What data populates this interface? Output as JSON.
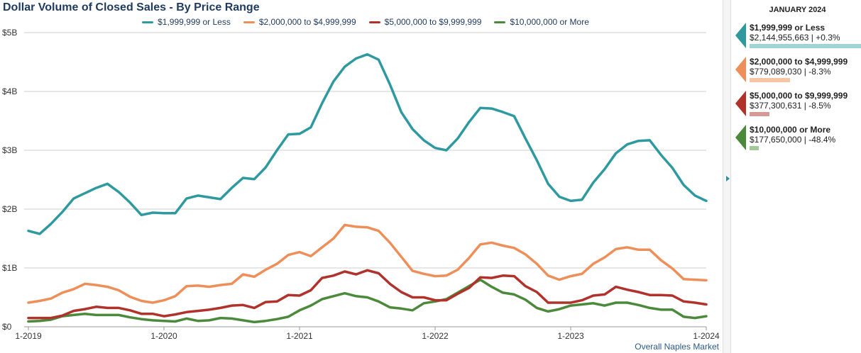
{
  "title": "Dollar Volume of Closed Sales - By Price Range",
  "footer": "Overall Naples Market",
  "panel": {
    "header": "JANUARY 2024",
    "entries": [
      {
        "label": "$1,999,999 or Less",
        "value": "$2,144,955,663 | +0.3%",
        "color": "#2e9aa0",
        "bar_color": "#9fd3d4",
        "share": 1.0
      },
      {
        "label": "$2,000,000 to $4,999,999",
        "value": "$779,089,030 | -8.3%",
        "color": "#ee8f5a",
        "bar_color": "#f6c6a6",
        "share": 0.363
      },
      {
        "label": "$5,000,000 to $9,999,999",
        "value": "$377,300,631 | -8.5%",
        "color": "#b0322b",
        "bar_color": "#d69a96",
        "share": 0.176
      },
      {
        "label": "$10,000,000 or More",
        "value": "$177,650,000 | -48.4%",
        "color": "#4a8a3a",
        "bar_color": "#a3c999",
        "share": 0.083
      }
    ]
  },
  "chart_data": {
    "type": "line",
    "title": "Dollar Volume of Closed Sales - By Price Range",
    "ylim": [
      0,
      5000000000
    ],
    "y_ticks": [
      0,
      1000000000,
      2000000000,
      3000000000,
      4000000000,
      5000000000
    ],
    "y_tick_labels": [
      "$0",
      "$1B",
      "$2B",
      "$3B",
      "$4B",
      "$5B"
    ],
    "x_tick_labels": [
      "1-2019",
      "1-2020",
      "1-2021",
      "1-2022",
      "1-2023",
      "1-2024"
    ],
    "x_tick_index": [
      0,
      12,
      24,
      36,
      48,
      60
    ],
    "grid": true,
    "legend": "top",
    "series": [
      {
        "name": "$1,999,999 or Less",
        "color": "#2e9aa0",
        "values": [
          1.63,
          1.58,
          1.75,
          1.95,
          2.18,
          2.27,
          2.36,
          2.43,
          2.29,
          2.11,
          1.9,
          1.94,
          1.93,
          1.93,
          2.18,
          2.23,
          2.2,
          2.17,
          2.36,
          2.53,
          2.51,
          2.71,
          3.0,
          3.27,
          3.28,
          3.39,
          3.8,
          4.17,
          4.42,
          4.56,
          4.63,
          4.54,
          4.12,
          3.65,
          3.36,
          3.17,
          3.04,
          3.0,
          3.2,
          3.48,
          3.72,
          3.71,
          3.65,
          3.58,
          3.2,
          2.83,
          2.43,
          2.21,
          2.14,
          2.16,
          2.45,
          2.68,
          2.95,
          3.1,
          3.16,
          3.17,
          2.92,
          2.7,
          2.41,
          2.23,
          2.14
        ]
      },
      {
        "name": "$2,000,000 to $4,999,999",
        "color": "#ee8f5a",
        "values": [
          0.41,
          0.44,
          0.48,
          0.58,
          0.64,
          0.73,
          0.71,
          0.68,
          0.62,
          0.51,
          0.44,
          0.41,
          0.45,
          0.52,
          0.69,
          0.7,
          0.68,
          0.71,
          0.73,
          0.89,
          0.85,
          0.97,
          1.07,
          1.22,
          1.27,
          1.2,
          1.35,
          1.5,
          1.73,
          1.7,
          1.69,
          1.63,
          1.43,
          1.19,
          0.95,
          0.9,
          0.86,
          0.87,
          0.97,
          1.17,
          1.4,
          1.43,
          1.38,
          1.34,
          1.23,
          1.07,
          0.87,
          0.8,
          0.86,
          0.9,
          1.07,
          1.18,
          1.32,
          1.35,
          1.31,
          1.31,
          1.13,
          0.99,
          0.81,
          0.8,
          0.79
        ]
      },
      {
        "name": "$5,000,000 to $9,999,999",
        "color": "#b0322b",
        "values": [
          0.15,
          0.15,
          0.15,
          0.19,
          0.27,
          0.3,
          0.34,
          0.32,
          0.32,
          0.28,
          0.22,
          0.22,
          0.18,
          0.21,
          0.25,
          0.27,
          0.29,
          0.32,
          0.36,
          0.37,
          0.32,
          0.42,
          0.43,
          0.54,
          0.53,
          0.62,
          0.83,
          0.87,
          0.94,
          0.89,
          0.96,
          0.91,
          0.73,
          0.59,
          0.5,
          0.5,
          0.45,
          0.45,
          0.56,
          0.66,
          0.84,
          0.83,
          0.87,
          0.86,
          0.69,
          0.59,
          0.41,
          0.41,
          0.41,
          0.45,
          0.53,
          0.55,
          0.68,
          0.63,
          0.59,
          0.54,
          0.54,
          0.53,
          0.43,
          0.41,
          0.38
        ]
      },
      {
        "name": "$10,000,000 or More",
        "color": "#4a8a3a",
        "values": [
          0.09,
          0.1,
          0.12,
          0.18,
          0.2,
          0.22,
          0.2,
          0.2,
          0.2,
          0.16,
          0.13,
          0.11,
          0.1,
          0.09,
          0.14,
          0.1,
          0.11,
          0.15,
          0.14,
          0.11,
          0.08,
          0.1,
          0.13,
          0.17,
          0.28,
          0.36,
          0.47,
          0.52,
          0.57,
          0.52,
          0.5,
          0.43,
          0.33,
          0.31,
          0.28,
          0.4,
          0.43,
          0.47,
          0.58,
          0.69,
          0.8,
          0.68,
          0.58,
          0.55,
          0.46,
          0.32,
          0.26,
          0.3,
          0.36,
          0.38,
          0.4,
          0.36,
          0.41,
          0.41,
          0.37,
          0.32,
          0.29,
          0.29,
          0.17,
          0.15,
          0.18
        ]
      }
    ]
  }
}
